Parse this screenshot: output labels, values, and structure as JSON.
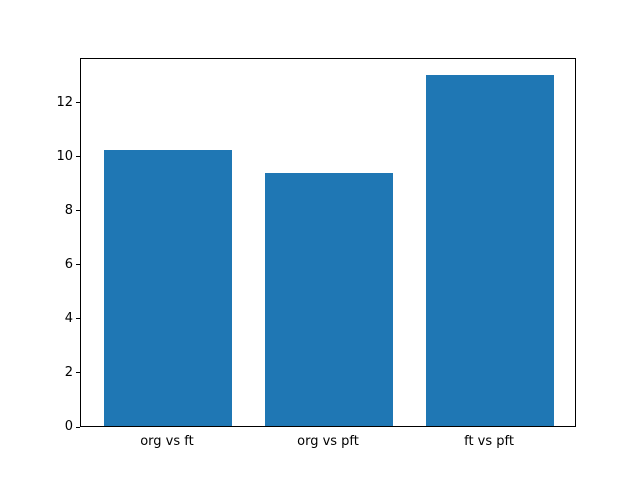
{
  "chart_data": {
    "type": "bar",
    "categories": [
      "org vs ft",
      "org vs pft",
      "ft vs pft"
    ],
    "values": [
      10.2,
      9.35,
      13.0
    ],
    "title": "",
    "xlabel": "",
    "ylabel": "",
    "ylim": [
      0,
      13.65
    ],
    "yticks": [
      0,
      2,
      4,
      6,
      8,
      10,
      12
    ],
    "bar_color": "#1f77b4",
    "grid": false,
    "legend": false
  }
}
